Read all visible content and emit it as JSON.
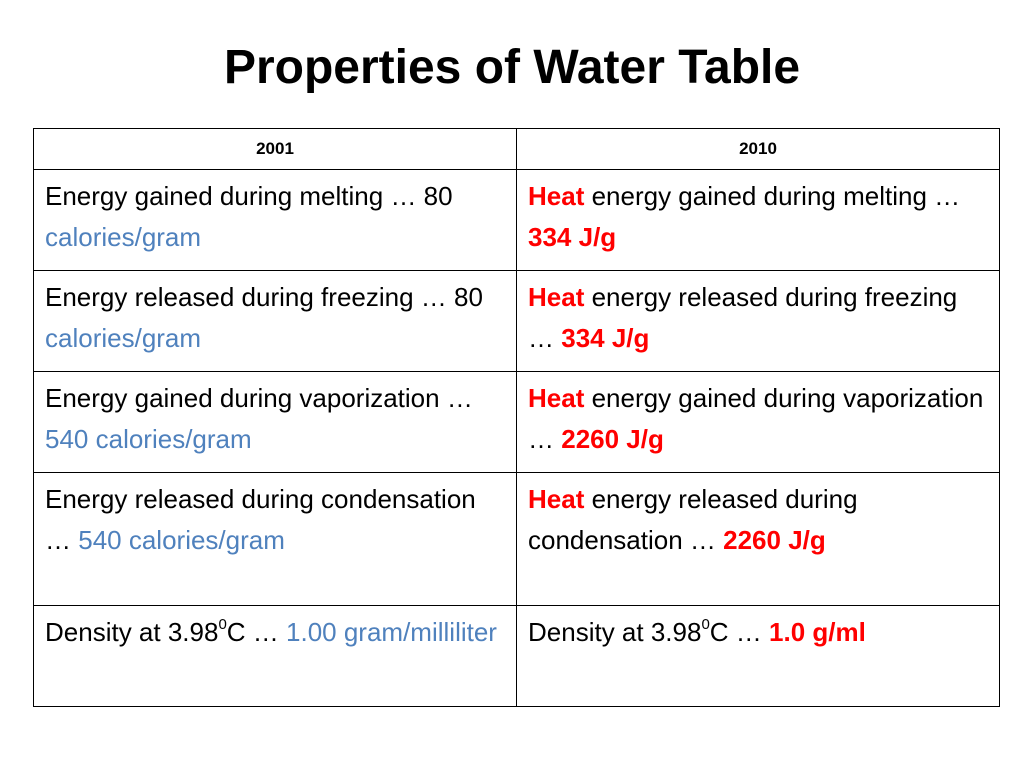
{
  "title": "Properties of Water Table",
  "colors": {
    "unit_blue": "#4f81bd",
    "highlight_red": "#ff0000",
    "border": "#000000"
  },
  "table": {
    "headers": [
      "2001",
      "2010"
    ],
    "rows": [
      {
        "left": {
          "text": "Energy gained during melting … 80 ",
          "unit": "calories/gram"
        },
        "right": {
          "heat": "Heat",
          "text": " energy gained during melting … ",
          "value": "334 J/g"
        }
      },
      {
        "left": {
          "text": "Energy released during freezing … 80 ",
          "unit": "calories/gram"
        },
        "right": {
          "heat": "Heat",
          "text": " energy released during freezing … ",
          "value": "334 J/g"
        }
      },
      {
        "left": {
          "text": "Energy gained during vaporization … ",
          "unit": "540 calories/gram"
        },
        "right": {
          "heat": "Heat",
          "text": " energy gained during vaporization … ",
          "value": "2260 J/g"
        }
      },
      {
        "left": {
          "text": "Energy released during condensation … ",
          "unit": "540 calories/gram"
        },
        "right": {
          "heat": "Heat",
          "text": " energy released during condensation … ",
          "value": "2260 J/g"
        }
      },
      {
        "left": {
          "prefix": "Density at 3.98",
          "sup": "0",
          "text": "C … ",
          "unit": "1.00 gram/milliliter"
        },
        "right": {
          "prefix": "Density at 3.98",
          "sup": "0",
          "text": "C … ",
          "value": "1.0 g/ml"
        }
      }
    ]
  }
}
